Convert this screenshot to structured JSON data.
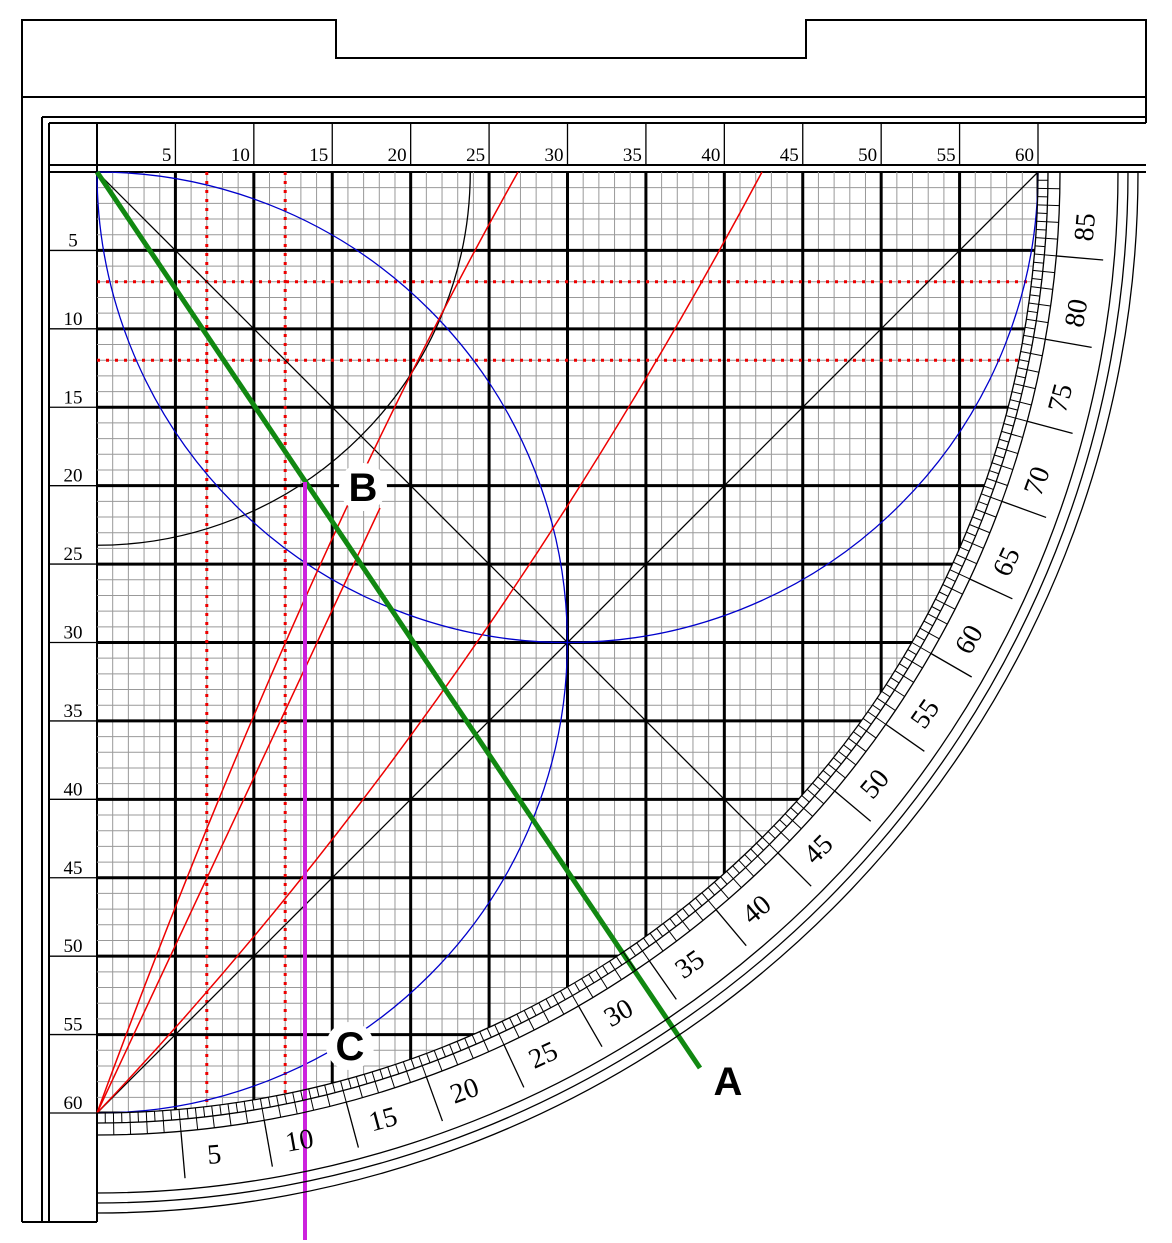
{
  "top_scale": {
    "labels": [
      "5",
      "10",
      "15",
      "20",
      "25",
      "30",
      "35",
      "40",
      "45",
      "50",
      "55",
      "60"
    ]
  },
  "left_scale": {
    "labels": [
      "5",
      "10",
      "15",
      "20",
      "25",
      "30",
      "35",
      "40",
      "45",
      "50",
      "55",
      "60"
    ]
  },
  "arc_scale": {
    "labels": [
      "5",
      "10",
      "15",
      "20",
      "25",
      "30",
      "35",
      "40",
      "45",
      "50",
      "55",
      "60",
      "65",
      "70",
      "75",
      "80",
      "85"
    ]
  },
  "points": [
    {
      "label": "A"
    },
    {
      "label": "B"
    },
    {
      "label": "C"
    }
  ]
}
